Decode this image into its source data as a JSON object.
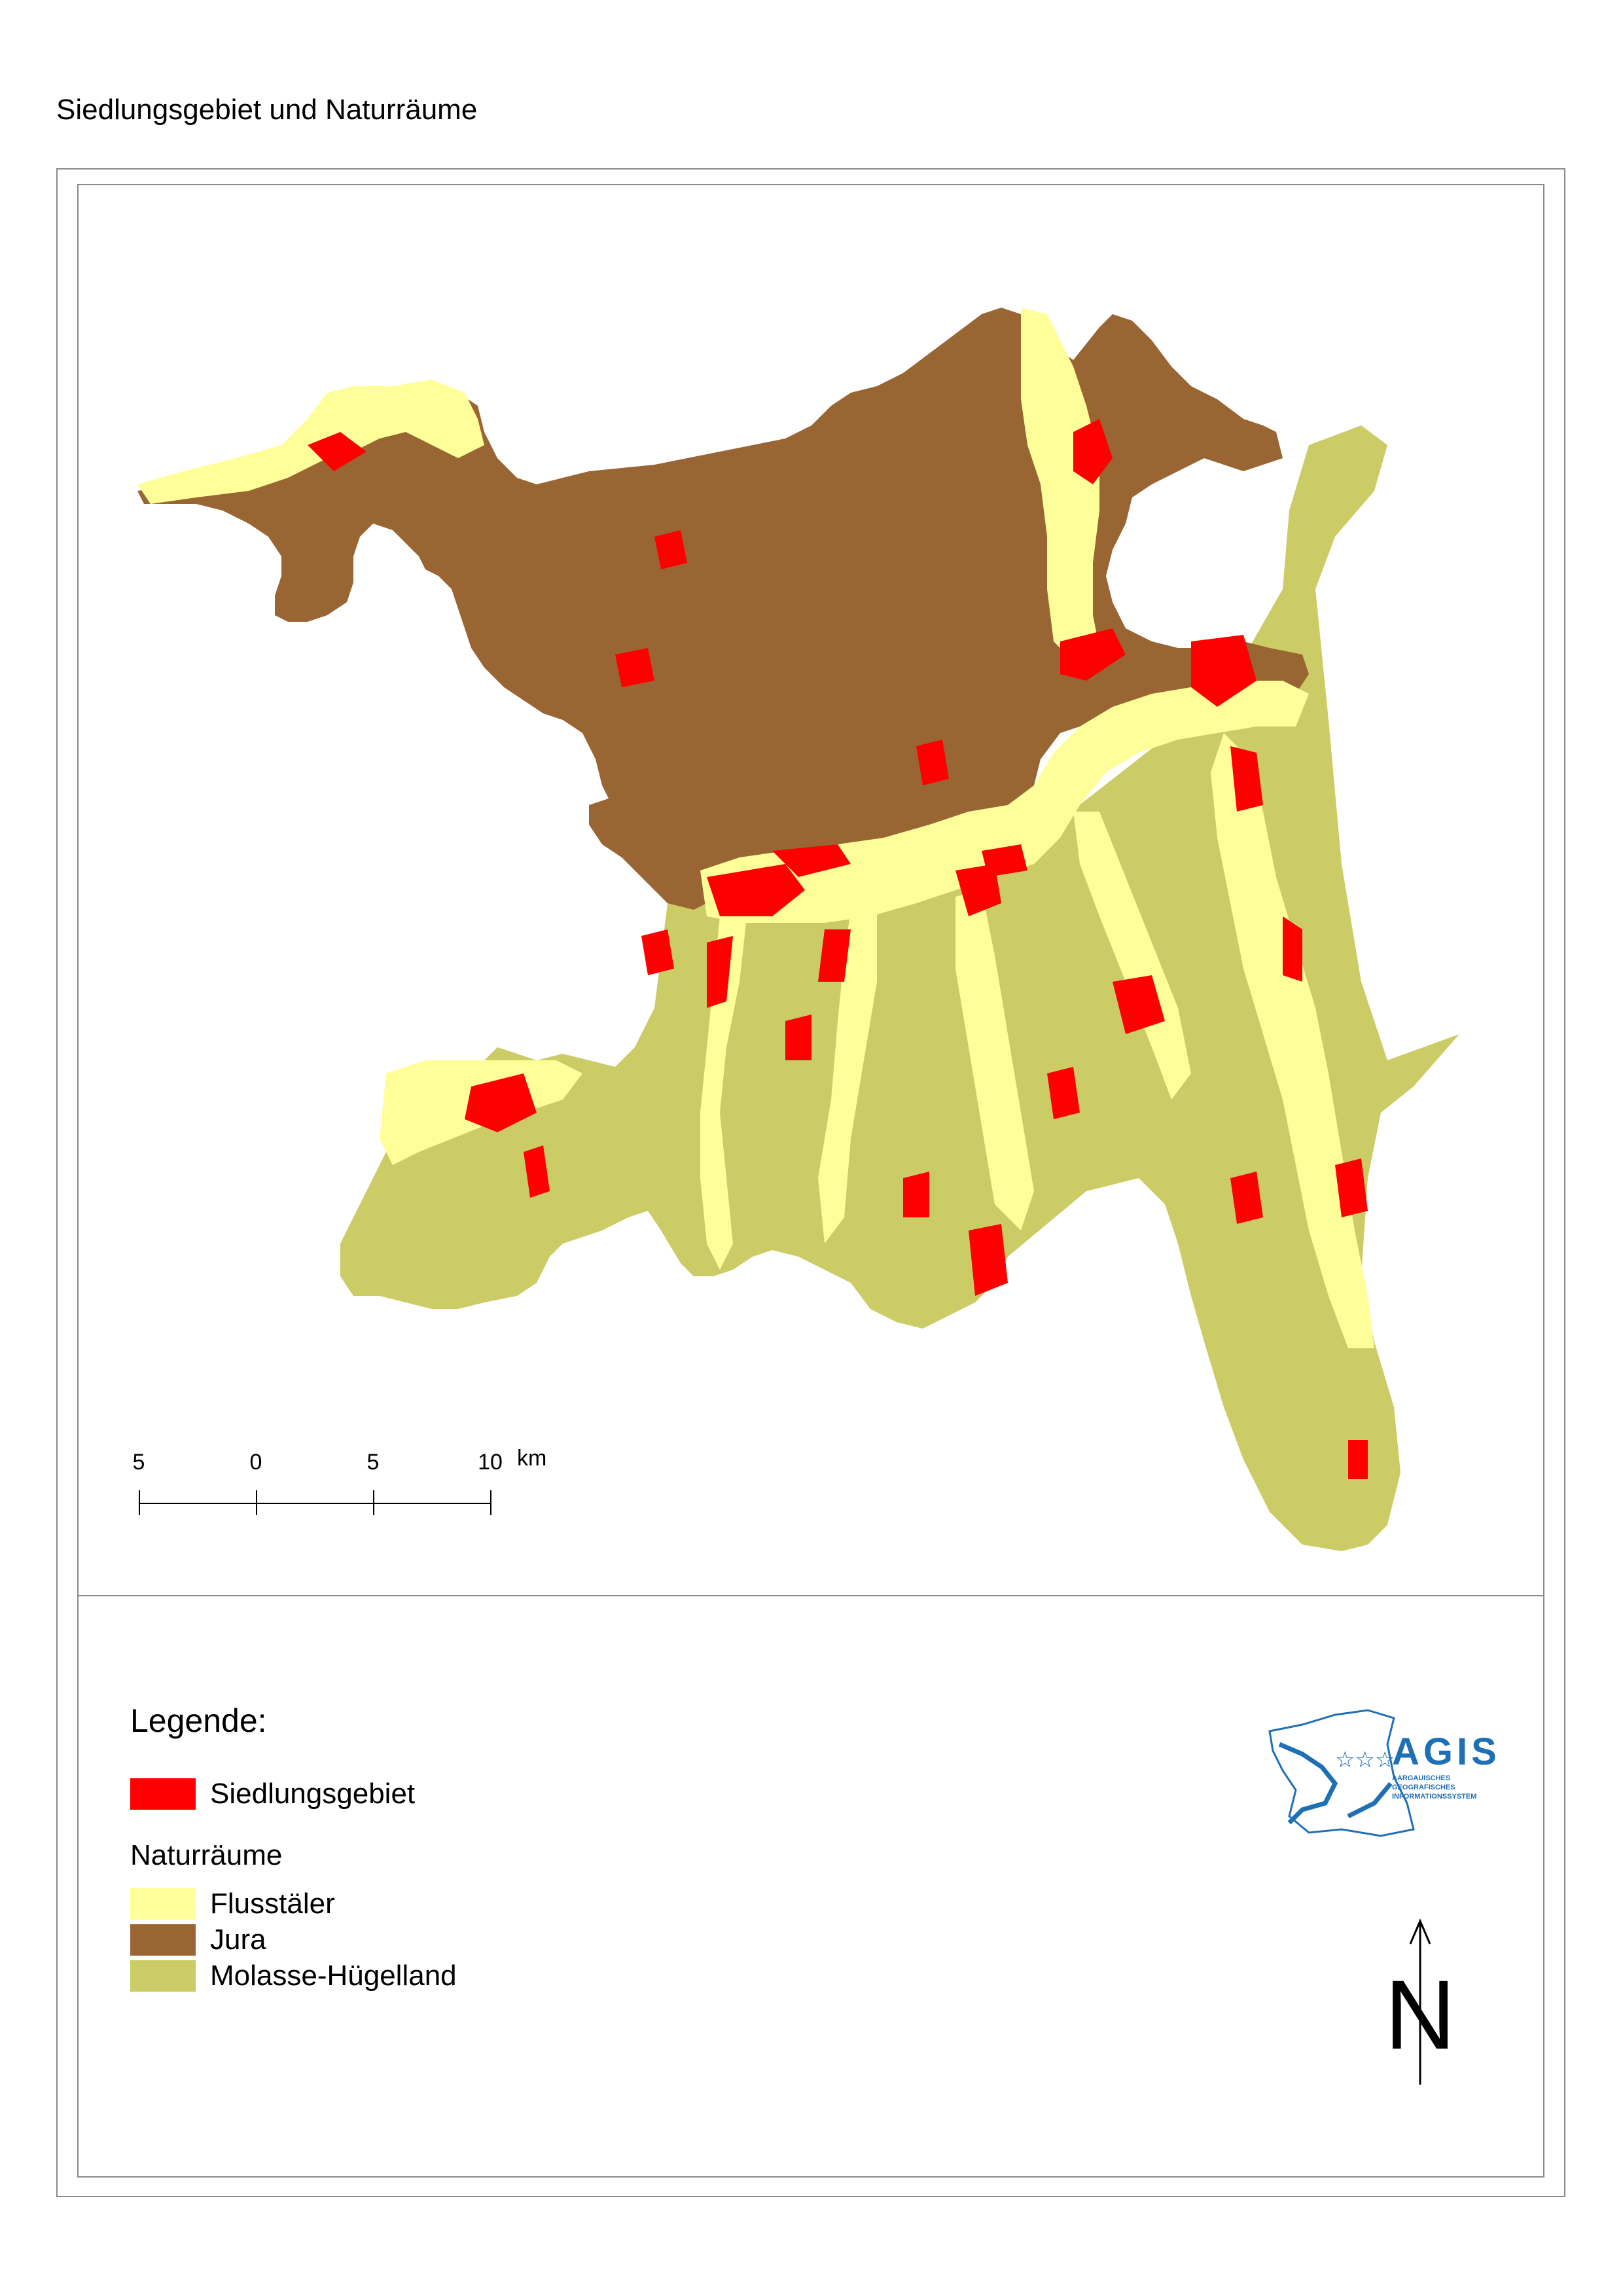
{
  "title": "Siedlungsgebiet und Naturräume",
  "colors": {
    "siedlungsgebiet": "#ff0000",
    "flusstaeler": "#ffff99",
    "jura": "#996633",
    "molasse": "#cccc66",
    "frame": "#8a8a8a",
    "logo": "#1f6fb5"
  },
  "scalebar": {
    "labels": [
      "5",
      "0",
      "5",
      "10"
    ],
    "unit": "km"
  },
  "legend": {
    "title": "Legende:",
    "settlement_label": "Siedlungsgebiet",
    "group_title": "Naturräume",
    "items": [
      "Flusstäler",
      "Jura",
      "Molasse-Hügelland"
    ]
  },
  "logo": {
    "name": "AGIS",
    "subtitle": "AARGAUISCHES GEOGRAFISCHES INFORMATIONSSYSTEM"
  },
  "north_arrow": {
    "label": "N"
  }
}
